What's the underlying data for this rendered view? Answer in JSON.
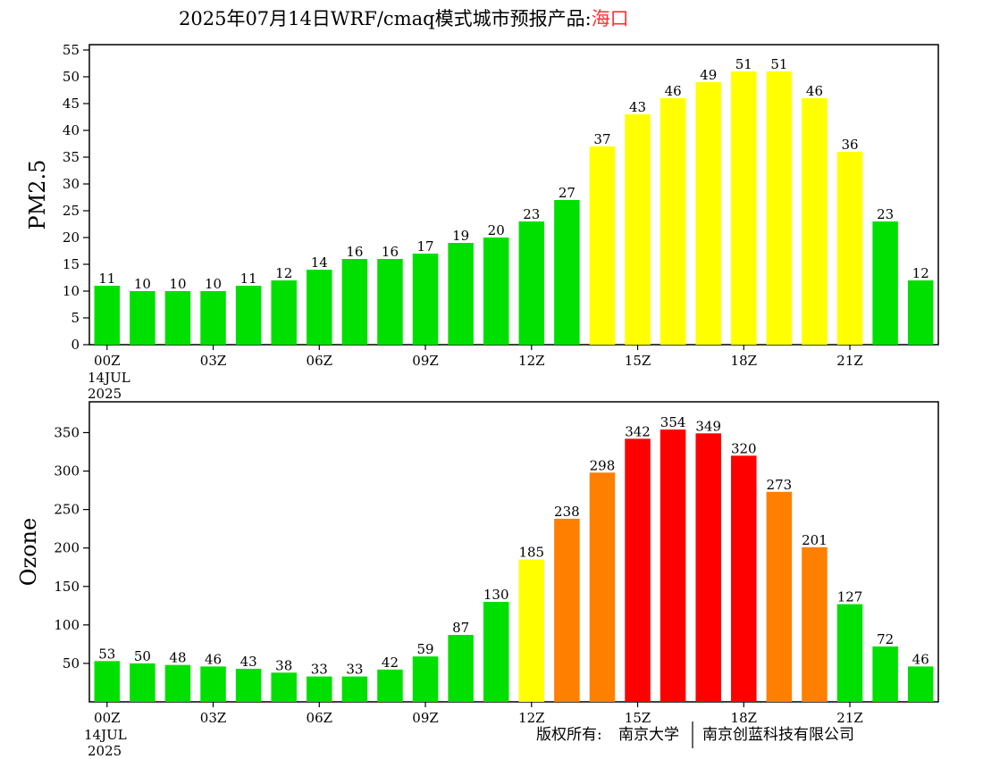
{
  "header": {
    "title_main": "2025年07月14日WRF/cmaq模式城市预报产品:",
    "title_city": "海口",
    "city_color": "#ff3030"
  },
  "footer": {
    "credit_label": "版权所有:",
    "org_1": "南京大学",
    "org_2": "南京创蓝科技有限公司"
  },
  "x_axis": {
    "tick_labels": [
      "00Z",
      "03Z",
      "06Z",
      "09Z",
      "12Z",
      "15Z",
      "18Z",
      "21Z"
    ],
    "date_line_1": "14JUL",
    "date_line_2": "2025"
  },
  "colors": {
    "green": "#00e000",
    "yellow": "#ffff00",
    "orange": "#ff7f00",
    "red": "#ff0000"
  },
  "chart_data": [
    {
      "type": "bar",
      "ylabel": "PM2.5",
      "xlabel": "",
      "ylim": [
        0,
        56
      ],
      "yticks": [
        0,
        5,
        10,
        15,
        20,
        25,
        30,
        35,
        40,
        45,
        50,
        55
      ],
      "hours": [
        0,
        1,
        2,
        3,
        4,
        5,
        6,
        7,
        8,
        9,
        10,
        11,
        12,
        13,
        14,
        15,
        16,
        17,
        18,
        19,
        20,
        21,
        22,
        23
      ],
      "values": [
        11,
        10,
        10,
        10,
        11,
        12,
        14,
        16,
        16,
        17,
        19,
        20,
        23,
        27,
        37,
        43,
        46,
        49,
        51,
        51,
        46,
        36,
        23,
        12
      ],
      "bar_colors": [
        "green",
        "green",
        "green",
        "green",
        "green",
        "green",
        "green",
        "green",
        "green",
        "green",
        "green",
        "green",
        "green",
        "green",
        "yellow",
        "yellow",
        "yellow",
        "yellow",
        "yellow",
        "yellow",
        "yellow",
        "yellow",
        "green",
        "green"
      ],
      "grid": false
    },
    {
      "type": "bar",
      "ylabel": "Ozone",
      "xlabel": "",
      "ylim": [
        0,
        390
      ],
      "yticks": [
        50,
        100,
        150,
        200,
        250,
        300,
        350
      ],
      "hours": [
        0,
        1,
        2,
        3,
        4,
        5,
        6,
        7,
        8,
        9,
        10,
        11,
        12,
        13,
        14,
        15,
        16,
        17,
        18,
        19,
        20,
        21,
        22,
        23
      ],
      "values": [
        53,
        50,
        48,
        46,
        43,
        38,
        33,
        33,
        42,
        59,
        87,
        130,
        185,
        238,
        298,
        342,
        354,
        349,
        320,
        273,
        201,
        127,
        72,
        46
      ],
      "bar_colors": [
        "green",
        "green",
        "green",
        "green",
        "green",
        "green",
        "green",
        "green",
        "green",
        "green",
        "green",
        "green",
        "yellow",
        "orange",
        "orange",
        "red",
        "red",
        "red",
        "red",
        "orange",
        "orange",
        "green",
        "green",
        "green"
      ],
      "grid": false
    }
  ]
}
